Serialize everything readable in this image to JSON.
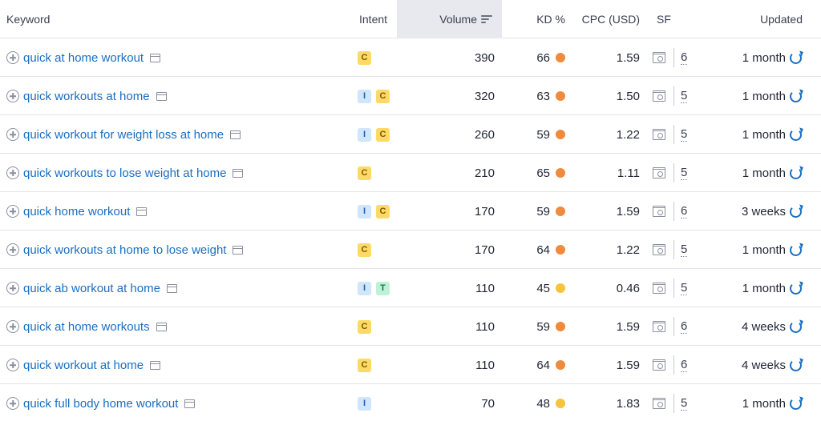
{
  "header": {
    "keyword": "Keyword",
    "intent": "Intent",
    "volume": "Volume",
    "kd": "KD %",
    "cpc": "CPC (USD)",
    "sf": "SF",
    "updated": "Updated"
  },
  "colors": {
    "kd_orange": "#f08a3c",
    "kd_yellow": "#f5c43a",
    "link": "#1a6ec2"
  },
  "rows": [
    {
      "keyword": "quick at home workout",
      "intents": [
        "C"
      ],
      "volume": "390",
      "kd": "66",
      "kd_level": "orange",
      "cpc": "1.59",
      "sf": "6",
      "updated": "1 month"
    },
    {
      "keyword": "quick workouts at home",
      "intents": [
        "I",
        "C"
      ],
      "volume": "320",
      "kd": "63",
      "kd_level": "orange",
      "cpc": "1.50",
      "sf": "5",
      "updated": "1 month"
    },
    {
      "keyword": "quick workout for weight loss at home",
      "intents": [
        "I",
        "C"
      ],
      "volume": "260",
      "kd": "59",
      "kd_level": "orange",
      "cpc": "1.22",
      "sf": "5",
      "updated": "1 month"
    },
    {
      "keyword": "quick workouts to lose weight at home",
      "intents": [
        "C"
      ],
      "volume": "210",
      "kd": "65",
      "kd_level": "orange",
      "cpc": "1.11",
      "sf": "5",
      "updated": "1 month"
    },
    {
      "keyword": "quick home workout",
      "intents": [
        "I",
        "C"
      ],
      "volume": "170",
      "kd": "59",
      "kd_level": "orange",
      "cpc": "1.59",
      "sf": "6",
      "updated": "3 weeks"
    },
    {
      "keyword": "quick workouts at home to lose weight",
      "intents": [
        "C"
      ],
      "volume": "170",
      "kd": "64",
      "kd_level": "orange",
      "cpc": "1.22",
      "sf": "5",
      "updated": "1 month"
    },
    {
      "keyword": "quick ab workout at home",
      "intents": [
        "I",
        "T"
      ],
      "volume": "110",
      "kd": "45",
      "kd_level": "yellow",
      "cpc": "0.46",
      "sf": "5",
      "updated": "1 month"
    },
    {
      "keyword": "quick at home workouts",
      "intents": [
        "C"
      ],
      "volume": "110",
      "kd": "59",
      "kd_level": "orange",
      "cpc": "1.59",
      "sf": "6",
      "updated": "4 weeks"
    },
    {
      "keyword": "quick workout at home",
      "intents": [
        "C"
      ],
      "volume": "110",
      "kd": "64",
      "kd_level": "orange",
      "cpc": "1.59",
      "sf": "6",
      "updated": "4 weeks"
    },
    {
      "keyword": "quick full body home workout",
      "intents": [
        "I"
      ],
      "volume": "70",
      "kd": "48",
      "kd_level": "yellow",
      "cpc": "1.83",
      "sf": "5",
      "updated": "1 month"
    }
  ]
}
